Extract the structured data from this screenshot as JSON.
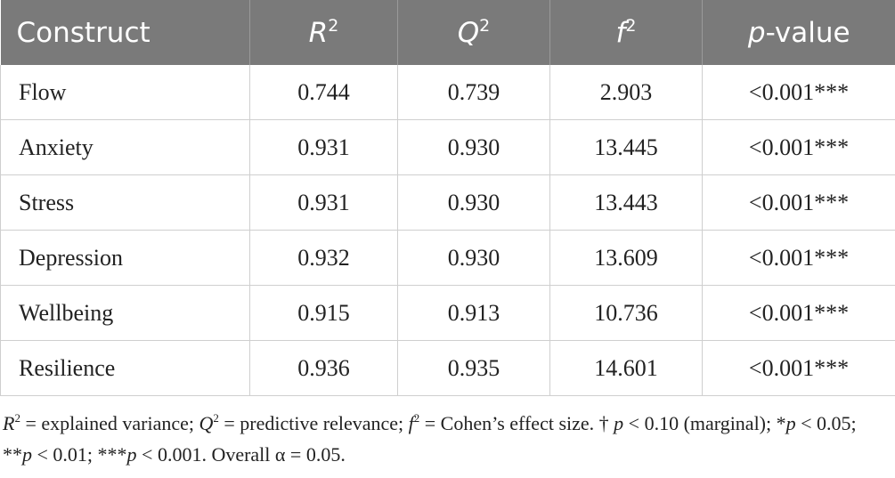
{
  "table": {
    "headers": [
      {
        "main": "Construct",
        "sup": ""
      },
      {
        "main": "R",
        "sup": "2"
      },
      {
        "main": "Q",
        "sup": "2"
      },
      {
        "main": "f",
        "sup": "2"
      },
      {
        "main": "p",
        "suffix": "-value"
      }
    ],
    "rows": [
      {
        "construct": "Flow",
        "r2": "0.744",
        "q2": "0.739",
        "f2": "2.903",
        "p": "<0.001***"
      },
      {
        "construct": "Anxiety",
        "r2": "0.931",
        "q2": "0.930",
        "f2": "13.445",
        "p": "<0.001***"
      },
      {
        "construct": "Stress",
        "r2": "0.931",
        "q2": "0.930",
        "f2": "13.443",
        "p": "<0.001***"
      },
      {
        "construct": "Depression",
        "r2": "0.932",
        "q2": "0.930",
        "f2": "13.609",
        "p": "<0.001***"
      },
      {
        "construct": "Wellbeing",
        "r2": "0.915",
        "q2": "0.913",
        "f2": "10.736",
        "p": "<0.001***"
      },
      {
        "construct": "Resilience",
        "r2": "0.936",
        "q2": "0.935",
        "f2": "14.601",
        "p": "<0.001***"
      }
    ]
  },
  "footnote": {
    "r_sym": "R",
    "r_sup": "2",
    "r_text": " = explained variance; ",
    "q_sym": "Q",
    "q_sup": "2",
    "q_text": " = predictive relevance; ",
    "f_sym": "f",
    "f_sup": "2",
    "f_text": " = Cohen’s effect size. † ",
    "p1": "p",
    "t1": " < 0.10 (marginal); *",
    "p2": "p",
    "t2": " < 0.05; **",
    "p3": "p",
    "t3": " < 0.01; ***",
    "p4": "p",
    "t4": " < 0.001. Overall α = 0.05."
  }
}
